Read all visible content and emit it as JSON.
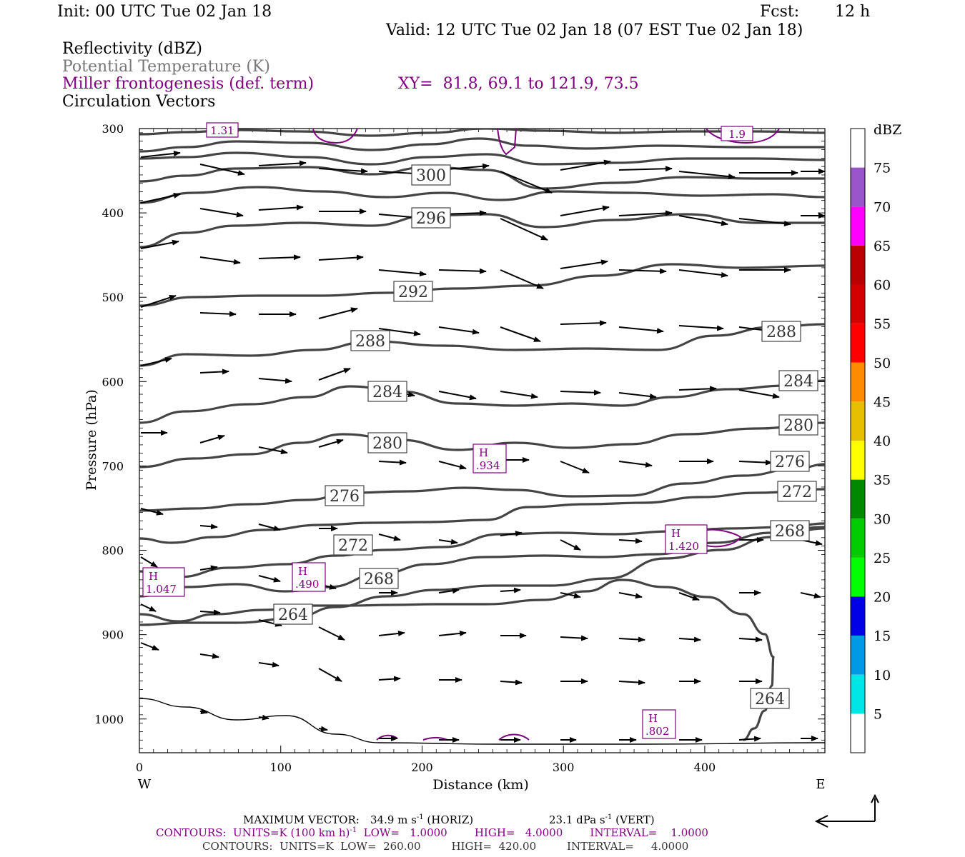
{
  "header": {
    "init": "Init: 00 UTC Tue 02 Jan 18",
    "fcst_label": "Fcst:",
    "fcst_value": "12 h",
    "valid": "Valid: 12 UTC Tue 02 Jan 18 (07 EST Tue 02 Jan 18)",
    "line1": "Reflectivity (dBZ)",
    "line2": "Potential Temperature (K)",
    "line3": "Miller frontogenesis (def. term)",
    "xy": "XY=  81.8, 69.1 to 121.9, 73.5",
    "line4": "Circulation Vectors"
  },
  "colors": {
    "theta": "#444444",
    "frontogenesis": "#800080",
    "vector": "#000000"
  },
  "chart_data": {
    "type": "contour",
    "xlabel": "Distance (km)",
    "ylabel": "Pressure (hPa)",
    "xlim": [
      0,
      485
    ],
    "ylim": [
      1040,
      300
    ],
    "x_ticks": [
      "0",
      "100",
      "200",
      "300",
      "400"
    ],
    "y_ticks": [
      "300",
      "400",
      "500",
      "600",
      "700",
      "800",
      "900",
      "1000"
    ],
    "x_left": "W",
    "x_right": "E",
    "theta_label_values": [
      "300",
      "296",
      "292",
      "288",
      "288",
      "284",
      "284",
      "280",
      "280",
      "276",
      "276",
      "272",
      "272",
      "268",
      "268",
      "264",
      "264"
    ],
    "frontogenesis_maxima": [
      {
        "mark": "H",
        "value": "1.047"
      },
      {
        "mark": "H",
        "value": ".490"
      },
      {
        "mark": "H",
        "value": ".934"
      },
      {
        "mark": "H",
        "value": "1.420"
      },
      {
        "mark": "H",
        "value": ".802"
      }
    ],
    "frontogenesis_top_labels": [
      "1.31",
      "1.9"
    ],
    "colorbar": {
      "unit": "dBZ",
      "labels": [
        "5",
        "10",
        "15",
        "20",
        "25",
        "30",
        "35",
        "40",
        "45",
        "50",
        "55",
        "60",
        "65",
        "70",
        "75"
      ],
      "colors": [
        "#ffffff",
        "#00e5e5",
        "#0099e6",
        "#0000e6",
        "#00ff00",
        "#00cc00",
        "#008800",
        "#ffff00",
        "#e6bf00",
        "#ff8c00",
        "#ff0000",
        "#d40000",
        "#bb0000",
        "#ff00ff",
        "#9955c9",
        "#ffffff"
      ]
    }
  },
  "footer": {
    "max_vector_label": "MAXIMUM VECTOR:",
    "horiz": "34.9 m s",
    "horiz_sup": "-1",
    "horiz_tag": "(HORIZ)",
    "vert": "23.1 dPa s",
    "vert_sup": "-1",
    "vert_tag": "(VERT)",
    "contours1": "CONTOURS:  UNITS=K (100 km h)",
    "contours1_sup": "-1",
    "contours1_rest": "  LOW=   1.0000        HIGH=   4.0000        INTERVAL=    1.0000",
    "contours2": "CONTOURS:  UNITS=K  LOW=  260.00         HIGH=  420.00         INTERVAL=     4.0000"
  }
}
